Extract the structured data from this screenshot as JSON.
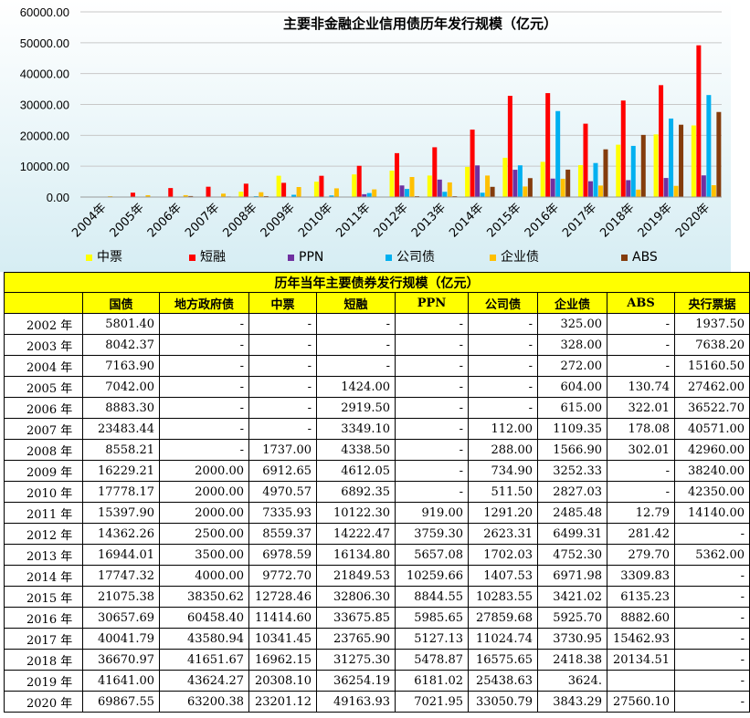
{
  "chart_data": {
    "type": "bar",
    "title": "主要非金融企业信用债历年发行规模（亿元）",
    "categories": [
      "2004年",
      "2005年",
      "2006年",
      "2007年",
      "2008年",
      "2009年",
      "2010年",
      "2011年",
      "2012年",
      "2013年",
      "2014年",
      "2015年",
      "2016年",
      "2017年",
      "2018年",
      "2019年",
      "2020年"
    ],
    "ylim": [
      0,
      60000
    ],
    "yticks": [
      "0.00",
      "10000.00",
      "20000.00",
      "30000.00",
      "40000.00",
      "50000.00",
      "60000.00"
    ],
    "ytick_values": [
      0,
      10000,
      20000,
      30000,
      40000,
      50000,
      60000
    ],
    "grid": true,
    "legend_position": "bottom",
    "series": [
      {
        "name": "中票",
        "color": "#ffff00",
        "values": [
          0,
          0,
          0,
          0,
          1737,
          6912.65,
          4970.57,
          7335.93,
          8559.37,
          6978.59,
          9772.7,
          12728.46,
          11414.6,
          10341.45,
          16962.15,
          20308.1,
          23201.12
        ]
      },
      {
        "name": "短融",
        "color": "#ff0000",
        "values": [
          0,
          1424,
          2919.5,
          3349.1,
          4338.5,
          4612.05,
          6892.35,
          10122.3,
          14222.47,
          16134.8,
          21849.53,
          32806.3,
          33675.85,
          23765.9,
          31275.3,
          36254.19,
          49163.93
        ]
      },
      {
        "name": "PPN",
        "color": "#7030a0",
        "values": [
          0,
          0,
          0,
          0,
          0,
          0,
          0,
          919,
          3759.3,
          5657.08,
          10259.66,
          8844.55,
          5985.65,
          5127.13,
          5478.87,
          6181.02,
          7021.95
        ]
      },
      {
        "name": "公司债",
        "color": "#00b0f0",
        "values": [
          0,
          0,
          0,
          112,
          288,
          734.9,
          511.5,
          1291.2,
          2623.31,
          1702.03,
          1407.53,
          10283.55,
          27859.68,
          11024.74,
          16575.65,
          25438.63,
          33050.79
        ]
      },
      {
        "name": "企业债",
        "color": "#ffc000",
        "values": [
          272,
          604,
          615,
          1109.35,
          1566.9,
          3252.33,
          2827.03,
          2485.48,
          6499.31,
          4752.3,
          6971.98,
          3421.02,
          5925.7,
          3730.95,
          2418.38,
          3624.39,
          3843.29
        ]
      },
      {
        "name": "ABS",
        "color": "#843c0c",
        "values": [
          0,
          130.74,
          322.01,
          178.08,
          302.01,
          0,
          0,
          12.79,
          281.42,
          279.7,
          3309.83,
          6135.23,
          8882.6,
          15462.93,
          20134.51,
          23437,
          27560.1
        ]
      }
    ]
  },
  "table": {
    "title": "历年当年主要债券发行规模（亿元）",
    "headers": [
      "",
      "国债",
      "地方政府债",
      "中票",
      "短融",
      "PPN",
      "公司债",
      "企业债",
      "ABS",
      "央行票据"
    ],
    "rows": [
      [
        "2002 年",
        "5801.40",
        "-",
        "-",
        "-",
        "-",
        "-",
        "325.00",
        "-",
        "1937.50"
      ],
      [
        "2003 年",
        "8042.37",
        "-",
        "-",
        "-",
        "-",
        "-",
        "328.00",
        "-",
        "7638.20"
      ],
      [
        "2004 年",
        "7163.90",
        "-",
        "-",
        "-",
        "-",
        "-",
        "272.00",
        "-",
        "15160.50"
      ],
      [
        "2005 年",
        "7042.00",
        "-",
        "-",
        "1424.00",
        "-",
        "-",
        "604.00",
        "130.74",
        "27462.00"
      ],
      [
        "2006 年",
        "8883.30",
        "-",
        "-",
        "2919.50",
        "-",
        "-",
        "615.00",
        "322.01",
        "36522.70"
      ],
      [
        "2007 年",
        "23483.44",
        "-",
        "-",
        "3349.10",
        "-",
        "112.00",
        "1109.35",
        "178.08",
        "40571.00"
      ],
      [
        "2008 年",
        "8558.21",
        "-",
        "1737.00",
        "4338.50",
        "-",
        "288.00",
        "1566.90",
        "302.01",
        "42960.00"
      ],
      [
        "2009 年",
        "16229.21",
        "2000.00",
        "6912.65",
        "4612.05",
        "-",
        "734.90",
        "3252.33",
        "-",
        "38240.00"
      ],
      [
        "2010 年",
        "17778.17",
        "2000.00",
        "4970.57",
        "6892.35",
        "-",
        "511.50",
        "2827.03",
        "-",
        "42350.00"
      ],
      [
        "2011 年",
        "15397.90",
        "2000.00",
        "7335.93",
        "10122.30",
        "919.00",
        "1291.20",
        "2485.48",
        "12.79",
        "14140.00"
      ],
      [
        "2012 年",
        "14362.26",
        "2500.00",
        "8559.37",
        "14222.47",
        "3759.30",
        "2623.31",
        "6499.31",
        "281.42",
        "-"
      ],
      [
        "2013 年",
        "16944.01",
        "3500.00",
        "6978.59",
        "16134.80",
        "5657.08",
        "1702.03",
        "4752.30",
        "279.70",
        "5362.00"
      ],
      [
        "2014 年",
        "17747.32",
        "4000.00",
        "9772.70",
        "21849.53",
        "10259.66",
        "1407.53",
        "6971.98",
        "3309.83",
        "-"
      ],
      [
        "2015 年",
        "21075.38",
        "38350.62",
        "12728.46",
        "32806.30",
        "8844.55",
        "10283.55",
        "3421.02",
        "6135.23",
        "-"
      ],
      [
        "2016 年",
        "30657.69",
        "60458.40",
        "11414.60",
        "33675.85",
        "5985.65",
        "27859.68",
        "5925.70",
        "8882.60",
        "-"
      ],
      [
        "2017 年",
        "40041.79",
        "43580.94",
        "10341.45",
        "23765.90",
        "5127.13",
        "11024.74",
        "3730.95",
        "15462.93",
        "-"
      ],
      [
        "2018 年",
        "36670.97",
        "41651.67",
        "16962.15",
        "31275.30",
        "5478.87",
        "16575.65",
        "2418.38",
        "20134.51",
        "-"
      ],
      [
        "2019 年",
        "41641.00",
        "43624.27",
        "20308.10",
        "36254.19",
        "6181.02",
        "25438.63",
        "3624.",
        "",
        "-"
      ],
      [
        "2020 年",
        "69867.55",
        "63200.38",
        "23201.12",
        "49163.93",
        "7021.95",
        "33050.79",
        "3843.29",
        "27560.10",
        "-"
      ]
    ]
  }
}
